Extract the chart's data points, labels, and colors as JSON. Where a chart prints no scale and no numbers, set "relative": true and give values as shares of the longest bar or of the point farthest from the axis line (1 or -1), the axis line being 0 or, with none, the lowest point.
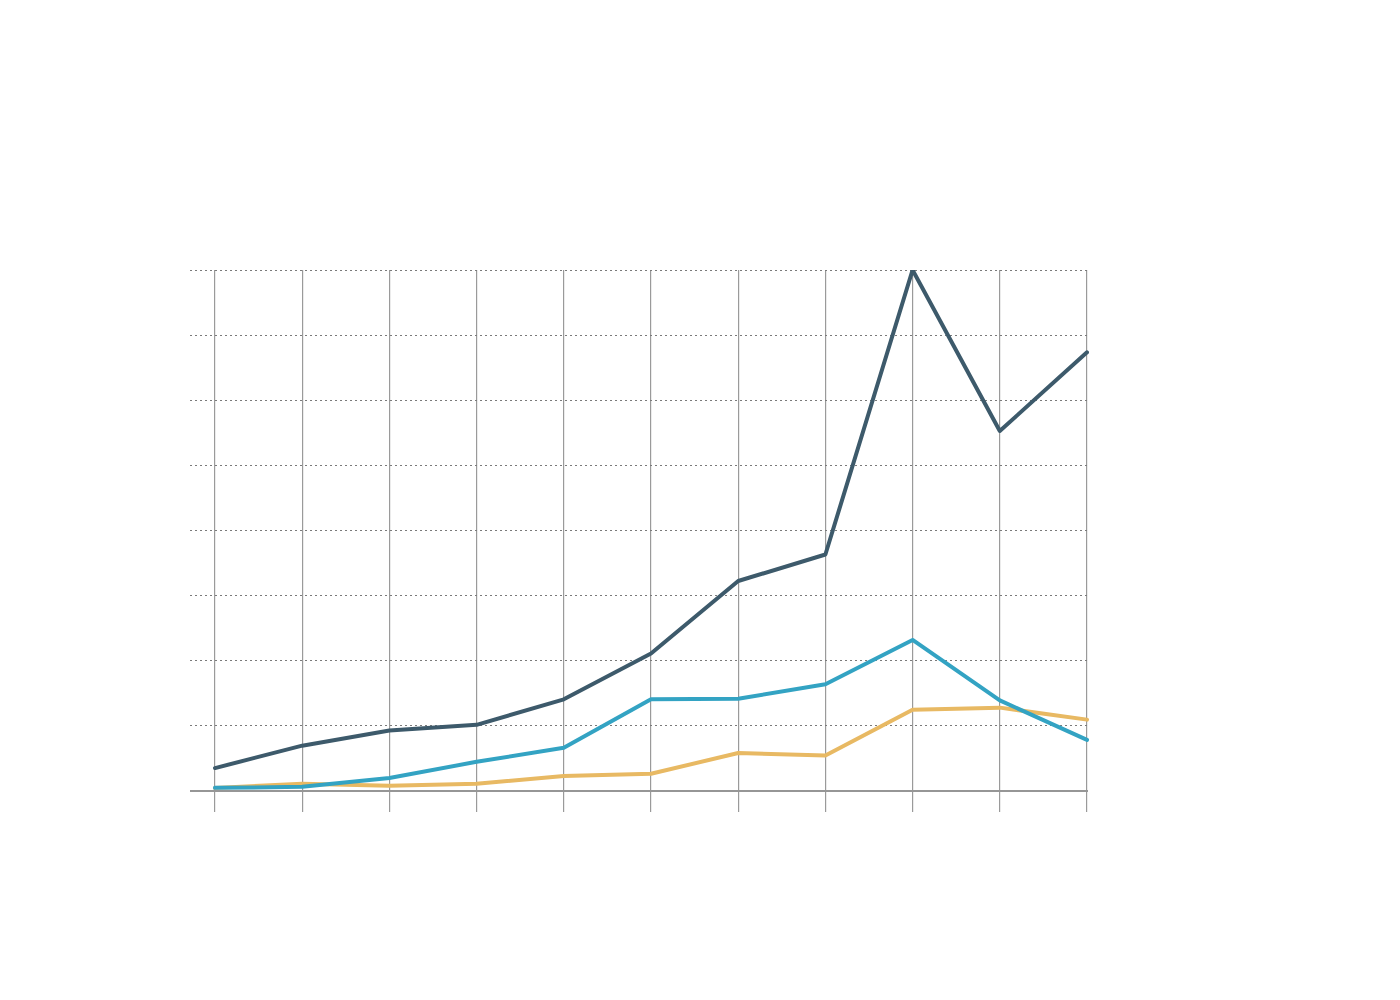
{
  "chart_data": {
    "type": "line",
    "relative": true,
    "grid": true,
    "marker": "none",
    "categories": [
      null,
      null,
      null,
      null,
      null,
      null,
      null,
      null,
      null,
      null,
      null
    ],
    "series": [
      {
        "color": "#3d5a6b",
        "values": [
          0.044,
          0.087,
          0.116,
          0.127,
          0.176,
          0.264,
          0.403,
          0.454,
          1,
          0.691,
          0.842
        ]
      },
      {
        "color": "#33a3c3",
        "values": [
          0.006,
          0.008,
          0.025,
          0.056,
          0.083,
          0.176,
          0.177,
          0.205,
          0.29,
          0.174,
          0.098
        ]
      },
      {
        "color": "#e8b963",
        "values": [
          0.006,
          0.014,
          0.01,
          0.014,
          0.029,
          0.033,
          0.073,
          0.068,
          0.156,
          0.16,
          0.137
        ]
      }
    ]
  }
}
